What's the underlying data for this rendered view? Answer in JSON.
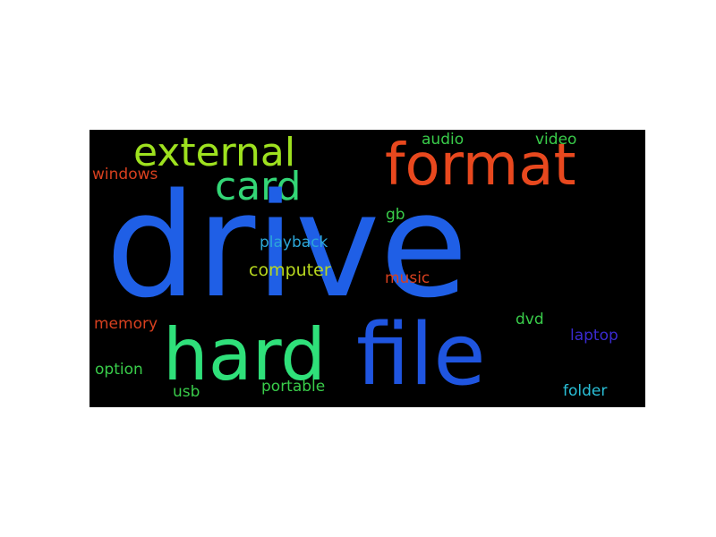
{
  "words": {
    "drive": {
      "text": "drive",
      "color": "#1f5fe6"
    },
    "format": {
      "text": "format",
      "color": "#e8481e"
    },
    "external": {
      "text": "external",
      "color": "#9ee11f"
    },
    "card": {
      "text": "card",
      "color": "#33d676"
    },
    "hard": {
      "text": "hard",
      "color": "#2fe07a"
    },
    "file": {
      "text": "file",
      "color": "#1f55e0"
    },
    "audio": {
      "text": "audio",
      "color": "#39cc4a"
    },
    "video": {
      "text": "video",
      "color": "#39cc4a"
    },
    "windows": {
      "text": "windows",
      "color": "#d8401f"
    },
    "gb": {
      "text": "gb",
      "color": "#39cc4a"
    },
    "playback": {
      "text": "playback",
      "color": "#2ca6d8"
    },
    "computer": {
      "text": "computer",
      "color": "#b8d81f"
    },
    "music": {
      "text": "music",
      "color": "#d8401f"
    },
    "memory": {
      "text": "memory",
      "color": "#d8401f"
    },
    "dvd": {
      "text": "dvd",
      "color": "#39cc4a"
    },
    "laptop": {
      "text": "laptop",
      "color": "#3a2ad0"
    },
    "option": {
      "text": "option",
      "color": "#39cc4a"
    },
    "usb": {
      "text": "usb",
      "color": "#39cc4a"
    },
    "portable": {
      "text": "portable",
      "color": "#39cc4a"
    },
    "folder": {
      "text": "folder",
      "color": "#2ac0d8"
    }
  }
}
